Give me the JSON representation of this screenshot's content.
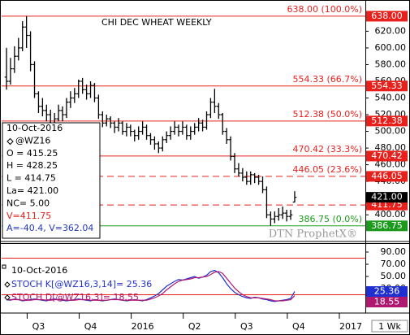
{
  "chart_data": [
    {
      "type": "ohlc",
      "title": "CHI DEC WHEAT WEEKLY",
      "color": "#000000",
      "open": [
        565,
        560,
        575,
        590,
        600,
        625,
        615,
        580,
        545,
        530,
        525,
        520,
        510,
        515,
        525,
        520,
        535,
        540,
        545,
        560,
        550,
        545,
        555,
        540,
        520,
        510,
        515,
        510,
        505,
        510,
        500,
        505,
        500,
        495,
        500,
        505,
        495,
        490,
        485,
        480,
        490,
        495,
        500,
        505,
        500,
        505,
        495,
        500,
        505,
        510,
        505,
        520,
        535,
        530,
        520,
        500,
        490,
        470,
        455,
        450,
        445,
        440,
        448,
        445,
        440,
        430,
        400,
        395,
        398,
        400,
        402,
        398,
        415.25,
        null,
        null,
        null,
        null,
        null,
        null,
        null,
        null,
        null,
        null,
        null,
        null,
        null,
        null,
        null,
        null,
        null
      ],
      "high": [
        600,
        588,
        602,
        612,
        632,
        638,
        620,
        584,
        548,
        540,
        532,
        526,
        522,
        532,
        530,
        540,
        548,
        552,
        562,
        564,
        556,
        560,
        558,
        544,
        524,
        520,
        518,
        512,
        516,
        512,
        510,
        508,
        502,
        506,
        512,
        508,
        498,
        494,
        488,
        494,
        500,
        506,
        512,
        508,
        512,
        508,
        506,
        510,
        516,
        514,
        524,
        540,
        551,
        534,
        522,
        504,
        494,
        474,
        462,
        456,
        452,
        452,
        450,
        448,
        446,
        434,
        404,
        404,
        408,
        410,
        406,
        406,
        428.25,
        null,
        null,
        null,
        null,
        null,
        null,
        null,
        null,
        null,
        null,
        null,
        null,
        null,
        null,
        null,
        null,
        null
      ],
      "low": [
        550,
        556,
        570,
        585,
        596,
        600,
        572,
        540,
        522,
        518,
        512,
        504,
        506,
        512,
        512,
        516,
        528,
        534,
        540,
        545,
        538,
        540,
        535,
        515,
        505,
        506,
        504,
        498,
        500,
        496,
        494,
        494,
        488,
        490,
        496,
        490,
        484,
        478,
        474,
        476,
        486,
        490,
        496,
        494,
        496,
        490,
        490,
        496,
        500,
        500,
        502,
        516,
        522,
        515,
        496,
        485,
        465,
        450,
        446,
        440,
        436,
        436,
        438,
        436,
        426,
        396,
        386.75,
        390,
        393,
        395,
        392,
        394,
        414.75,
        null,
        null,
        null,
        null,
        null,
        null,
        null,
        null,
        null,
        null,
        null,
        null,
        null,
        null,
        null,
        null,
        null
      ],
      "close": [
        560,
        575,
        590,
        600,
        625,
        615,
        580,
        545,
        530,
        525,
        520,
        510,
        515,
        525,
        520,
        535,
        540,
        545,
        560,
        550,
        545,
        555,
        540,
        520,
        510,
        515,
        510,
        505,
        510,
        500,
        505,
        500,
        495,
        500,
        505,
        495,
        490,
        485,
        480,
        490,
        495,
        500,
        505,
        500,
        505,
        495,
        500,
        505,
        510,
        505,
        520,
        535,
        530,
        520,
        500,
        490,
        470,
        455,
        450,
        445,
        440,
        448,
        445,
        440,
        430,
        400,
        395,
        398,
        400,
        402,
        398,
        400,
        421,
        null,
        null,
        null,
        null,
        null,
        null,
        null,
        null,
        null,
        null,
        null,
        null,
        null,
        null,
        null,
        null,
        null
      ],
      "ylim": [
        369,
        654
      ],
      "yticks": [
        {
          "value": 400,
          "label": "400.00"
        },
        {
          "value": 420,
          "label": "420.00"
        },
        {
          "value": 440,
          "label": "440.00"
        },
        {
          "value": 460,
          "label": "460.00"
        },
        {
          "value": 480,
          "label": "480.00"
        },
        {
          "value": 500,
          "label": "500.00"
        },
        {
          "value": 520,
          "label": "520.00"
        },
        {
          "value": 540,
          "label": "540.00"
        },
        {
          "value": 560,
          "label": "560.00"
        },
        {
          "value": 580,
          "label": "580.00"
        },
        {
          "value": 600,
          "label": "600.00"
        },
        {
          "value": 620,
          "label": "620.00"
        }
      ],
      "levels": [
        {
          "value": 638,
          "label": "638.00 (100.0%)",
          "tag": "638.00",
          "color": "#e8201c"
        },
        {
          "value": 554.33,
          "label": "554.33 (66.7%)",
          "tag": "554.33",
          "color": "#e8201c"
        },
        {
          "value": 512.38,
          "label": "512.38 (50.0%)",
          "tag": "512.38",
          "color": "#e8201c"
        },
        {
          "value": 470.42,
          "label": "470.42 (33.3%)",
          "tag": "470.42",
          "color": "#e8201c"
        },
        {
          "value": 446.05,
          "label": "446.05 (23.6%)",
          "tag": "446.05",
          "color": "#e8201c",
          "dashed": true
        },
        {
          "value": 411.75,
          "tag": "411.75",
          "color": "#e8201c",
          "dashed": true
        },
        {
          "value": 386.75,
          "label": "386.75 (0.0%)",
          "tag": "386.75",
          "color": "#1c9a1c"
        }
      ],
      "last": {
        "value": 421,
        "label": "421.00"
      },
      "info": [
        {
          "text": "10-Oct-2016"
        },
        {
          "text": "@WZ16"
        },
        {
          "text": "O = 415.25"
        },
        {
          "text": "H = 428.25"
        },
        {
          "text": "L = 414.75"
        },
        {
          "text": "La= 421.00"
        },
        {
          "text": "NC= 5.00"
        },
        {
          "text": "V=411.75",
          "color": "#e8201c"
        },
        {
          "text": "A=-40.4, V=362.04",
          "color": "#2038c0"
        }
      ],
      "watermark": "DTN ProphetX®"
    },
    {
      "type": "line",
      "date": "10-Oct-2016",
      "categories": [
        null,
        null,
        null,
        null,
        null,
        null,
        null,
        null,
        "Q3",
        null,
        null,
        null,
        null,
        null,
        null,
        null,
        null,
        null,
        null,
        null,
        null,
        "Q4",
        null,
        null,
        null,
        null,
        null,
        null,
        null,
        null,
        null,
        null,
        null,
        null,
        "2016",
        null,
        null,
        null,
        null,
        null,
        null,
        null,
        null,
        null,
        null,
        null,
        null,
        "Q2",
        null,
        null,
        null,
        null,
        null,
        null,
        null,
        null,
        null,
        null,
        null,
        null,
        "Q3",
        null,
        null,
        null,
        null,
        null,
        null,
        null,
        null,
        null,
        null,
        null,
        null,
        "Q4",
        null,
        null,
        null,
        null,
        null,
        null,
        null,
        null,
        null,
        null,
        null,
        null,
        "2017",
        null,
        null,
        null
      ],
      "series": [
        {
          "name": "STOCH K[@WZ16,3,14]= 25.36",
          "color": "#2030d0",
          "values": [
            12,
            11,
            13,
            12,
            10,
            11,
            12,
            13,
            12,
            11,
            10,
            12,
            13,
            12,
            11,
            10,
            11,
            12,
            13,
            12,
            11,
            10,
            12,
            11,
            10,
            11,
            12,
            13,
            12,
            11,
            10,
            11,
            12,
            11,
            10,
            12,
            15,
            18,
            22,
            28,
            34,
            38,
            42,
            45,
            44,
            46,
            48,
            50,
            47,
            49,
            52,
            58,
            60,
            56,
            48,
            38,
            30,
            24,
            20,
            17,
            15,
            14,
            16,
            15,
            13,
            12,
            10,
            9,
            10,
            11,
            12,
            14,
            25.36,
            null,
            null,
            null,
            null,
            null,
            null,
            null,
            null,
            null,
            null,
            null,
            null,
            null,
            null,
            null,
            null,
            null
          ]
        },
        {
          "name": "STOCH D[@WZ16,3]= 18.55",
          "color": "#b01870",
          "values": [
            12,
            12,
            12,
            12,
            11,
            11,
            11,
            12,
            12,
            12,
            11,
            11,
            12,
            12,
            12,
            11,
            11,
            11,
            12,
            12,
            12,
            11,
            11,
            11,
            11,
            11,
            12,
            12,
            12,
            11,
            11,
            11,
            11,
            11,
            11,
            11,
            13,
            15,
            18,
            22,
            28,
            33,
            38,
            42,
            44,
            45,
            46,
            48,
            48,
            49,
            50,
            53,
            57,
            58,
            55,
            47,
            39,
            31,
            25,
            20,
            17,
            15,
            15,
            15,
            14,
            13,
            12,
            10,
            10,
            10,
            11,
            12,
            18.55,
            null,
            null,
            null,
            null,
            null,
            null,
            null,
            null,
            null,
            null,
            null,
            null,
            null,
            null,
            null,
            null,
            null
          ]
        }
      ],
      "ylim": [
        -8,
        101
      ],
      "yticks": [
        {
          "value": 10,
          "label": "10.00"
        },
        {
          "value": 30,
          "label": "30.00"
        },
        {
          "value": 50,
          "label": "50.00"
        },
        {
          "value": 70,
          "label": "70.00"
        },
        {
          "value": 90,
          "label": "90.00"
        }
      ],
      "reference_lines": [
        80,
        20
      ],
      "reference_color": "#e8201c",
      "corner_label": "1 Wk"
    }
  ]
}
